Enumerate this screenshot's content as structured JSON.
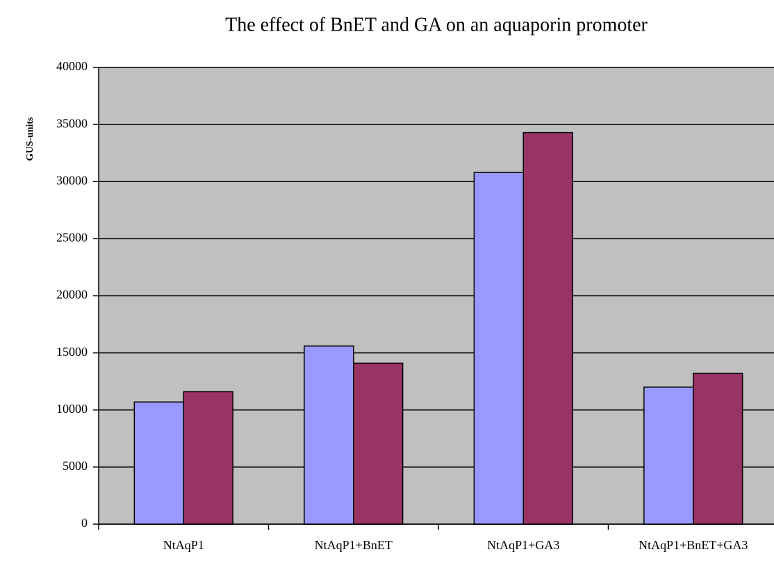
{
  "chart_data": {
    "type": "bar",
    "title": "The effect of BnET and GA on an aquaporin promoter",
    "y_label": "GUS-units",
    "categories": [
      "NtAqP1",
      "NtAqP1+BnET",
      "NtAqP1+GA3",
      "NtAqP1+BnET+GA3"
    ],
    "series": [
      {
        "color": "#9999ff",
        "values": [
          10700,
          15600,
          30800,
          12000
        ]
      },
      {
        "color": "#993366",
        "values": [
          11600,
          14100,
          34300,
          13200
        ]
      }
    ],
    "ylim": [
      0,
      40000
    ],
    "yticks": [
      0,
      5000,
      10000,
      15000,
      20000,
      25000,
      30000,
      35000,
      40000
    ],
    "grid": true,
    "plot_background": "#c0c0c0"
  }
}
